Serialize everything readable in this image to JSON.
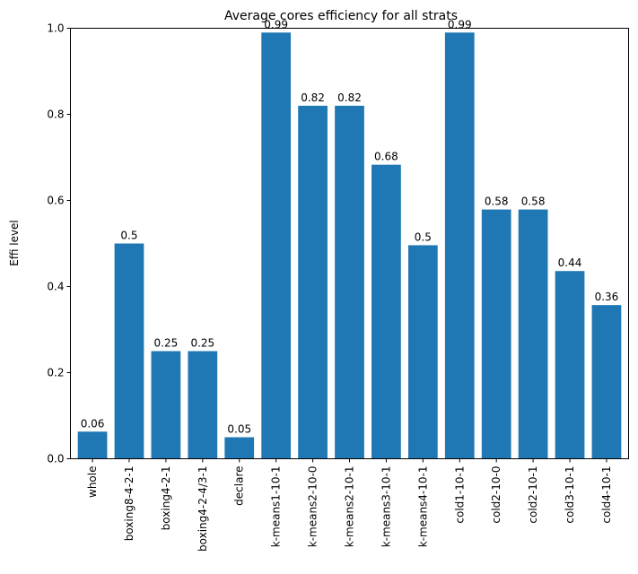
{
  "chart_data": {
    "type": "bar",
    "title": "Average cores efficiency for all strats",
    "xlabel": "",
    "ylabel": "Effi level",
    "ylim": [
      0,
      1.0
    ],
    "yticks": [
      "0.0",
      "0.2",
      "0.4",
      "0.6",
      "0.8",
      "1.0"
    ],
    "grid": false,
    "bar_color": "#1f77b4",
    "categories": [
      "whole",
      "boxing8-4-2-1",
      "boxing4-2-1",
      "boxing4-2-4/3-1",
      "declare",
      "k-means1-10-1",
      "k-means2-10-0",
      "k-means2-10-1",
      "k-means3-10-1",
      "k-means4-10-1",
      "cold1-10-1",
      "cold2-10-0",
      "cold2-10-1",
      "cold3-10-1",
      "cold4-10-1"
    ],
    "values": [
      0.063,
      0.5,
      0.25,
      0.25,
      0.05,
      0.99,
      0.82,
      0.82,
      0.683,
      0.496,
      0.99,
      0.579,
      0.579,
      0.436,
      0.357
    ],
    "data_labels": [
      "0.06",
      "0.5",
      "0.25",
      "0.25",
      "0.05",
      "0.99",
      "0.82",
      "0.82",
      "0.68",
      "0.5",
      "0.99",
      "0.58",
      "0.58",
      "0.44",
      "0.36"
    ]
  }
}
